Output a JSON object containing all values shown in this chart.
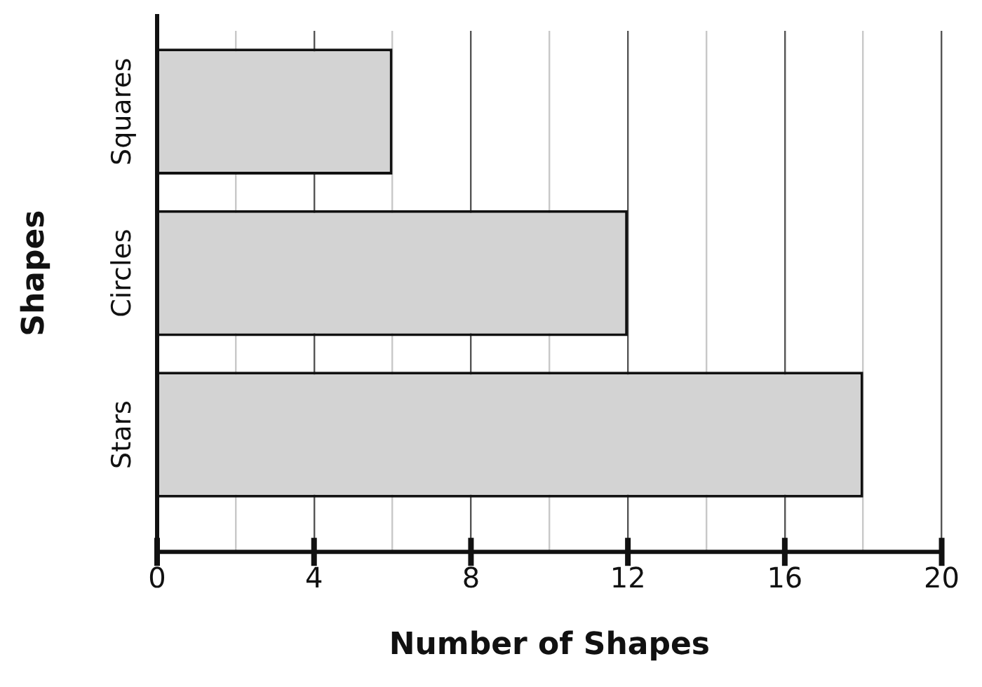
{
  "chart_data": {
    "type": "bar",
    "orientation": "horizontal",
    "xlabel": "Number of Shapes",
    "ylabel": "Shapes",
    "categories": [
      "Squares",
      "Circles",
      "Stars"
    ],
    "values": [
      6,
      12,
      18
    ],
    "color": "#d3d3d3",
    "xlim": [
      0,
      20
    ],
    "xticks": [
      0,
      {
        "value": 2,
        "label": null
      },
      4,
      {
        "value": 6,
        "label": null
      },
      8,
      {
        "value": 10,
        "label": null
      },
      12,
      {
        "value": 14,
        "label": null
      },
      16,
      {
        "value": 18,
        "label": null
      },
      20
    ],
    "grid": "x",
    "legend": false
  }
}
